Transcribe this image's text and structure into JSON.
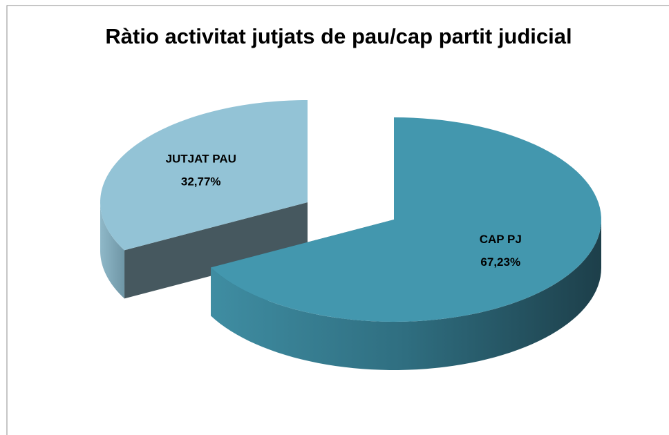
{
  "chart_data": {
    "type": "pie",
    "title": "Ràtio activitat jutjats de pau/cap partit judicial",
    "categories": [
      "CAP PJ",
      "JUTJAT PAU"
    ],
    "values": [
      67.23,
      32.77
    ],
    "value_labels": [
      "67,23%",
      "32,77%"
    ],
    "colors": [
      "#4397ae",
      "#93c3d6"
    ]
  }
}
